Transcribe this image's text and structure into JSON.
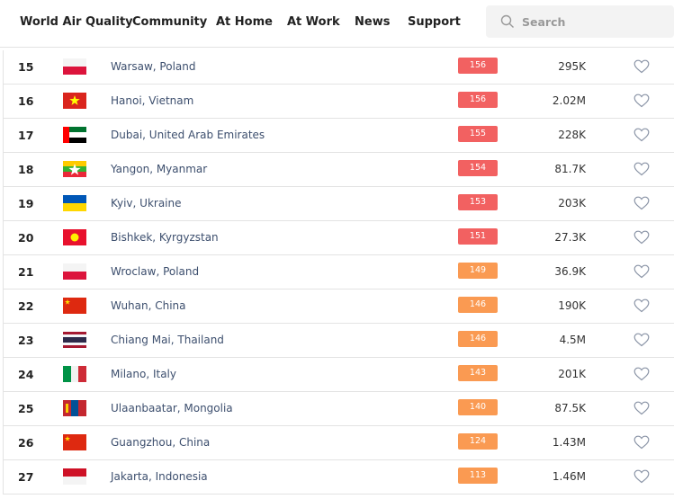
{
  "nav": {
    "brand": "World Air Quality",
    "links": [
      "Community",
      "At Home",
      "At Work",
      "News",
      "Support"
    ]
  },
  "search": {
    "placeholder": "Search"
  },
  "table": {
    "rows": [
      {
        "rank": 15,
        "city": "Warsaw, Poland",
        "aqi": 156,
        "aqi_color": "#f26161",
        "followers": "295K"
      },
      {
        "rank": 16,
        "city": "Hanoi, Vietnam",
        "aqi": 156,
        "aqi_color": "#f26161",
        "followers": "2.02M"
      },
      {
        "rank": 17,
        "city": "Dubai, United Arab Emirates",
        "aqi": 155,
        "aqi_color": "#f26161",
        "followers": "228K"
      },
      {
        "rank": 18,
        "city": "Yangon, Myanmar",
        "aqi": 154,
        "aqi_color": "#f26161",
        "followers": "81.7K"
      },
      {
        "rank": 19,
        "city": "Kyiv, Ukraine",
        "aqi": 153,
        "aqi_color": "#f26161",
        "followers": "203K"
      },
      {
        "rank": 20,
        "city": "Bishkek, Kyrgyzstan",
        "aqi": 151,
        "aqi_color": "#f26161",
        "followers": "27.3K"
      },
      {
        "rank": 21,
        "city": "Wroclaw, Poland",
        "aqi": 149,
        "aqi_color": "#fa9a52",
        "followers": "36.9K"
      },
      {
        "rank": 22,
        "city": "Wuhan, China",
        "aqi": 146,
        "aqi_color": "#fa9a52",
        "followers": "190K"
      },
      {
        "rank": 23,
        "city": "Chiang Mai, Thailand",
        "aqi": 146,
        "aqi_color": "#fa9a52",
        "followers": "4.5M"
      },
      {
        "rank": 24,
        "city": "Milano, Italy",
        "aqi": 143,
        "aqi_color": "#fa9a52",
        "followers": "201K"
      },
      {
        "rank": 25,
        "city": "Ulaanbaatar, Mongolia",
        "aqi": 140,
        "aqi_color": "#fa9a52",
        "followers": "87.5K"
      },
      {
        "rank": 26,
        "city": "Guangzhou, China",
        "aqi": 124,
        "aqi_color": "#fa9a52",
        "followers": "1.43M"
      },
      {
        "rank": 27,
        "city": "Jakarta, Indonesia",
        "aqi": 113,
        "aqi_color": "#fa9a52",
        "followers": "1.46M"
      }
    ]
  }
}
